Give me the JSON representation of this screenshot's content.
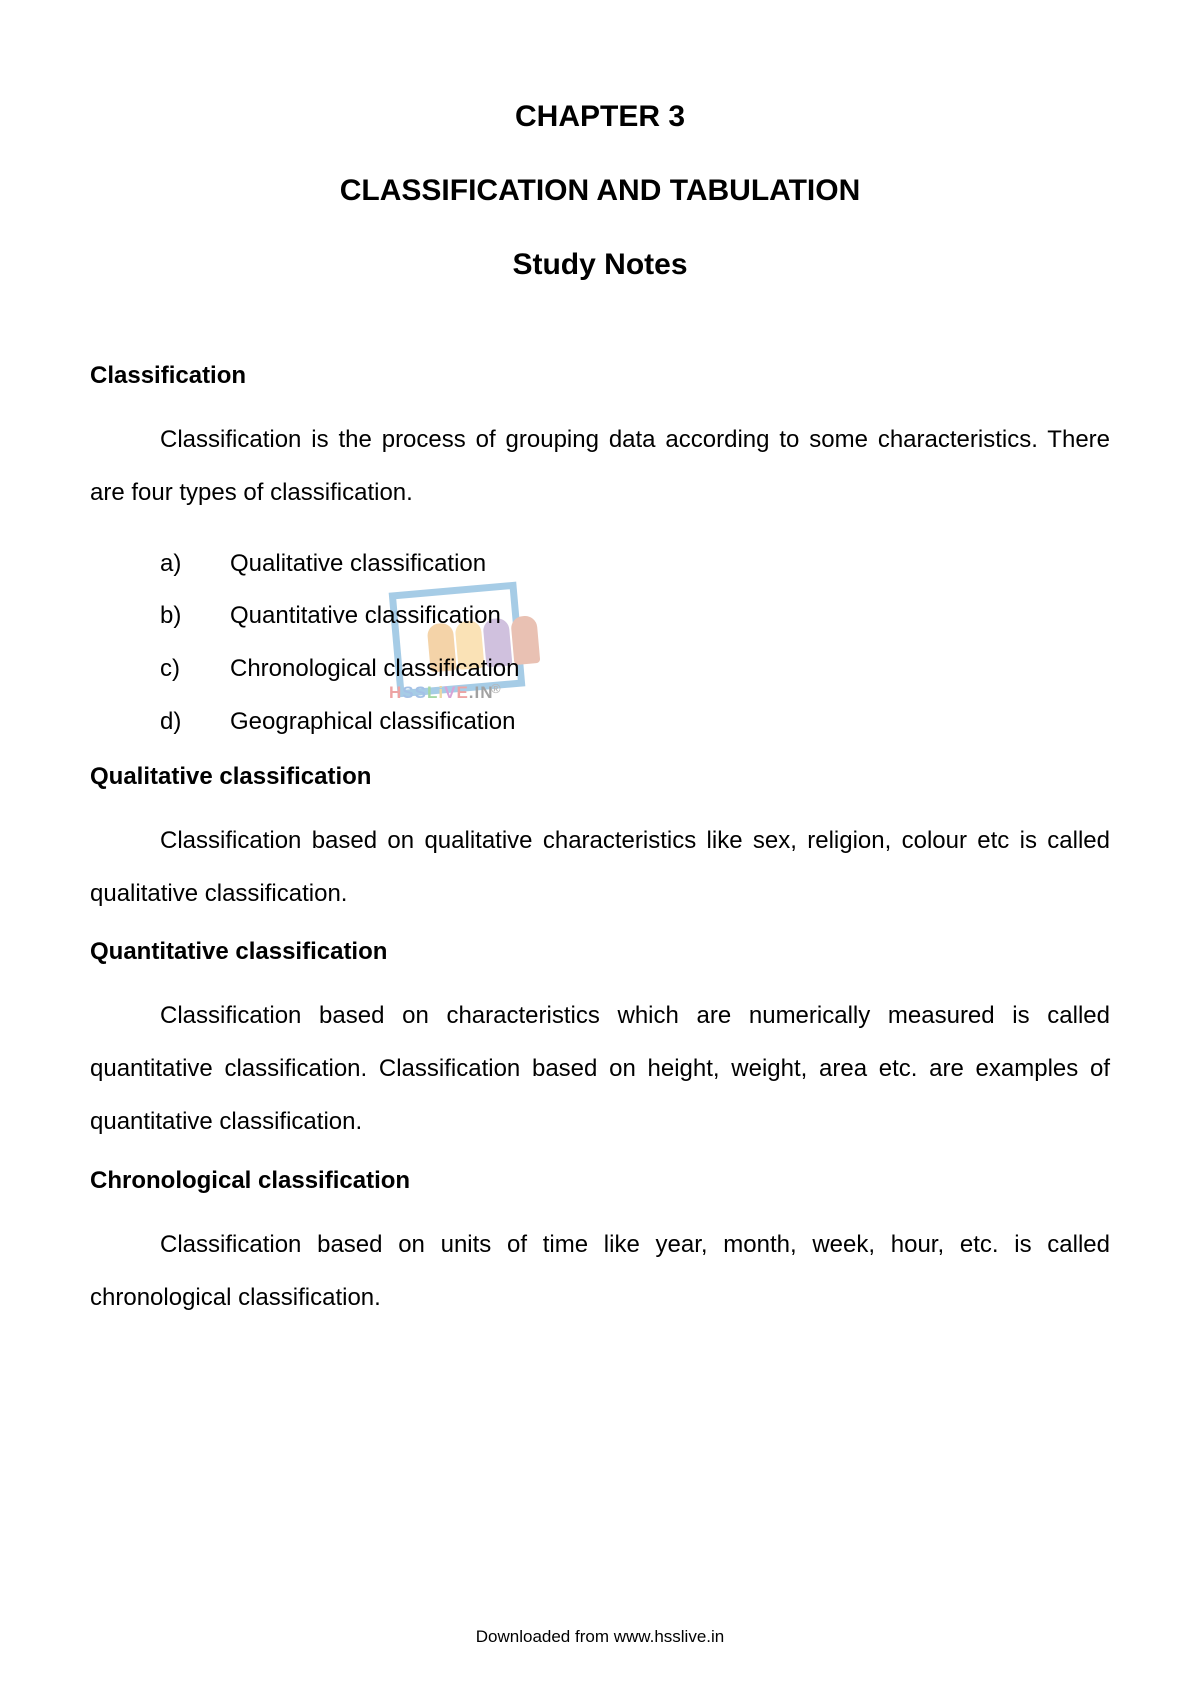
{
  "chapter": "CHAPTER 3",
  "title": "CLASSIFICATION AND TABULATION",
  "subtitle": "Study Notes",
  "sections": {
    "classification": {
      "heading": "Classification",
      "body": "Classification is the process of grouping data according to some characteristics. There are four types of classification.",
      "items": [
        {
          "marker": "a)",
          "text": "Qualitative classification"
        },
        {
          "marker": "b)",
          "text": "Quantitative classification"
        },
        {
          "marker": "c)",
          "text": "Chronological classification"
        },
        {
          "marker": "d)",
          "text": "Geographical classification"
        }
      ]
    },
    "qualitative": {
      "heading": "Qualitative classification",
      "body": "Classification based on qualitative characteristics like sex, religion, colour etc is called qualitative classification."
    },
    "quantitative": {
      "heading": "Quantitative classification",
      "body": "Classification based on characteristics which are numerically measured is called quantitative classification. Classification based on height, weight, area etc. are examples of quantitative classification."
    },
    "chronological": {
      "heading": "Chronological classification",
      "body": "Classification based on units of time like year, month, week, hour, etc. is called chronological classification."
    }
  },
  "watermark": {
    "text_parts": [
      "H",
      "S",
      "S",
      "L",
      "i",
      "V",
      "E",
      ".",
      "I",
      "N"
    ],
    "registered": "®"
  },
  "footer": "Downloaded from www.hsslive.in"
}
